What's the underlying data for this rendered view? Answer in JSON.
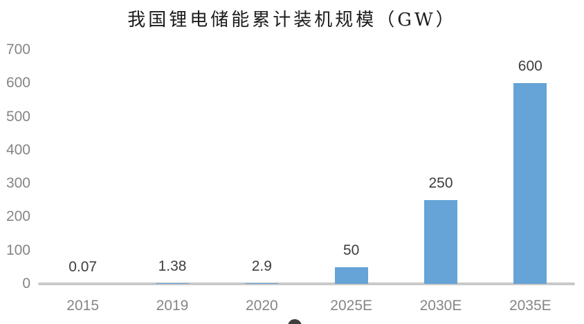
{
  "chart_data": {
    "type": "bar",
    "title": "我国锂电储能累计装机规模（GW）",
    "categories": [
      "2015",
      "2019",
      "2020",
      "2025E",
      "2030E",
      "2035E"
    ],
    "values": [
      0.07,
      1.38,
      2.9,
      50,
      250,
      600
    ],
    "value_labels": [
      "0.07",
      "1.38",
      "2.9",
      "50",
      "250",
      "600"
    ],
    "xlabel": "",
    "ylabel": "",
    "ylim": [
      0,
      700
    ],
    "yticks": [
      0,
      100,
      200,
      300,
      400,
      500,
      600,
      700
    ],
    "grid": false,
    "legend": "none",
    "bar_color": "#66a3d6",
    "axis_line_color": "#c9c9c9",
    "tick_label_color": "#858585",
    "value_label_color": "#3d3d3d",
    "title_color": "#1c1c1c"
  }
}
